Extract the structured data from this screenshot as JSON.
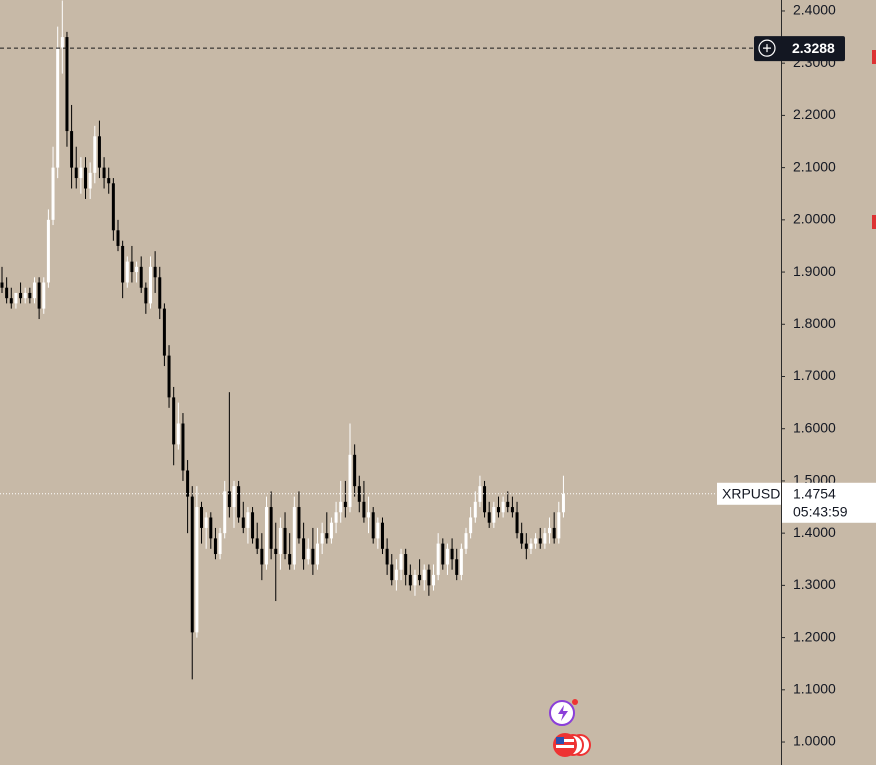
{
  "chart_data": {
    "type": "candlestick",
    "symbol": "XRPUSD",
    "countdown": "05:43:59",
    "up_color": "#ffffff",
    "down_color": "#000000",
    "ylim": [
      0.956,
      2.421
    ],
    "yticks": [
      {
        "value": 1.0,
        "label": "1.0000"
      },
      {
        "value": 1.1,
        "label": "1.1000"
      },
      {
        "value": 1.2,
        "label": "1.2000"
      },
      {
        "value": 1.3,
        "label": "1.3000"
      },
      {
        "value": 1.4,
        "label": "1.4000"
      },
      {
        "value": 1.5,
        "label": "1.5000"
      },
      {
        "value": 1.6,
        "label": "1.6000"
      },
      {
        "value": 1.7,
        "label": "1.7000"
      },
      {
        "value": 1.8,
        "label": "1.8000"
      },
      {
        "value": 1.9,
        "label": "1.9000"
      },
      {
        "value": 2.0,
        "label": "2.0000"
      },
      {
        "value": 2.1,
        "label": "2.1000"
      },
      {
        "value": 2.2,
        "label": "2.2000"
      },
      {
        "value": 2.3,
        "label": "2.3000"
      },
      {
        "value": 2.4,
        "label": "2.4000"
      }
    ],
    "crosshair": 2.3288,
    "candles": [
      [
        1.88,
        1.91,
        1.86,
        1.87
      ],
      [
        1.87,
        1.89,
        1.84,
        1.85
      ],
      [
        1.85,
        1.87,
        1.83,
        1.84
      ],
      [
        1.84,
        1.86,
        1.83,
        1.86
      ],
      [
        1.86,
        1.88,
        1.84,
        1.85
      ],
      [
        1.85,
        1.87,
        1.84,
        1.86
      ],
      [
        1.86,
        1.87,
        1.84,
        1.85
      ],
      [
        1.85,
        1.89,
        1.84,
        1.88
      ],
      [
        1.88,
        1.89,
        1.81,
        1.83
      ],
      [
        1.83,
        1.89,
        1.82,
        1.88
      ],
      [
        1.88,
        2.02,
        1.87,
        2.0
      ],
      [
        2.0,
        2.14,
        1.99,
        2.1
      ],
      [
        2.1,
        2.37,
        2.08,
        2.33
      ],
      [
        2.33,
        2.42,
        2.28,
        2.35
      ],
      [
        2.35,
        2.36,
        2.14,
        2.17
      ],
      [
        2.17,
        2.22,
        2.06,
        2.1
      ],
      [
        2.1,
        2.14,
        2.06,
        2.08
      ],
      [
        2.08,
        2.12,
        2.05,
        2.1
      ],
      [
        2.1,
        2.12,
        2.04,
        2.06
      ],
      [
        2.06,
        2.11,
        2.04,
        2.09
      ],
      [
        2.09,
        2.18,
        2.07,
        2.16
      ],
      [
        2.16,
        2.19,
        2.08,
        2.1
      ],
      [
        2.1,
        2.12,
        2.06,
        2.08
      ],
      [
        2.08,
        2.1,
        2.05,
        2.07
      ],
      [
        2.07,
        2.08,
        1.96,
        1.98
      ],
      [
        1.98,
        2.0,
        1.94,
        1.95
      ],
      [
        1.95,
        1.96,
        1.85,
        1.88
      ],
      [
        1.88,
        1.93,
        1.87,
        1.92
      ],
      [
        1.92,
        1.95,
        1.88,
        1.9
      ],
      [
        1.9,
        1.92,
        1.88,
        1.91
      ],
      [
        1.91,
        1.93,
        1.86,
        1.87
      ],
      [
        1.87,
        1.88,
        1.82,
        1.84
      ],
      [
        1.84,
        1.93,
        1.83,
        1.91
      ],
      [
        1.91,
        1.94,
        1.86,
        1.89
      ],
      [
        1.89,
        1.91,
        1.81,
        1.83
      ],
      [
        1.83,
        1.84,
        1.72,
        1.74
      ],
      [
        1.74,
        1.76,
        1.64,
        1.66
      ],
      [
        1.66,
        1.68,
        1.53,
        1.57
      ],
      [
        1.57,
        1.65,
        1.56,
        1.61
      ],
      [
        1.61,
        1.63,
        1.5,
        1.52
      ],
      [
        1.52,
        1.54,
        1.4,
        1.47
      ],
      [
        1.47,
        1.49,
        1.12,
        1.21
      ],
      [
        1.21,
        1.49,
        1.2,
        1.45
      ],
      [
        1.45,
        1.46,
        1.38,
        1.41
      ],
      [
        1.41,
        1.44,
        1.37,
        1.43
      ],
      [
        1.43,
        1.44,
        1.37,
        1.39
      ],
      [
        1.39,
        1.41,
        1.35,
        1.36
      ],
      [
        1.36,
        1.41,
        1.35,
        1.4
      ],
      [
        1.4,
        1.5,
        1.39,
        1.48
      ],
      [
        1.48,
        1.67,
        1.43,
        1.45
      ],
      [
        1.45,
        1.5,
        1.41,
        1.49
      ],
      [
        1.49,
        1.5,
        1.42,
        1.43
      ],
      [
        1.43,
        1.46,
        1.4,
        1.41
      ],
      [
        1.41,
        1.45,
        1.38,
        1.44
      ],
      [
        1.44,
        1.45,
        1.38,
        1.39
      ],
      [
        1.39,
        1.42,
        1.36,
        1.37
      ],
      [
        1.37,
        1.4,
        1.31,
        1.34
      ],
      [
        1.34,
        1.47,
        1.33,
        1.45
      ],
      [
        1.45,
        1.48,
        1.35,
        1.37
      ],
      [
        1.37,
        1.42,
        1.27,
        1.36
      ],
      [
        1.36,
        1.43,
        1.33,
        1.41
      ],
      [
        1.41,
        1.44,
        1.35,
        1.36
      ],
      [
        1.36,
        1.4,
        1.33,
        1.34
      ],
      [
        1.34,
        1.47,
        1.33,
        1.45
      ],
      [
        1.45,
        1.48,
        1.38,
        1.39
      ],
      [
        1.39,
        1.42,
        1.33,
        1.35
      ],
      [
        1.35,
        1.39,
        1.34,
        1.37
      ],
      [
        1.37,
        1.41,
        1.32,
        1.34
      ],
      [
        1.34,
        1.41,
        1.33,
        1.38
      ],
      [
        1.38,
        1.42,
        1.36,
        1.4
      ],
      [
        1.4,
        1.44,
        1.38,
        1.39
      ],
      [
        1.39,
        1.43,
        1.38,
        1.42
      ],
      [
        1.42,
        1.46,
        1.4,
        1.44
      ],
      [
        1.44,
        1.5,
        1.42,
        1.46
      ],
      [
        1.46,
        1.5,
        1.43,
        1.45
      ],
      [
        1.45,
        1.61,
        1.44,
        1.55
      ],
      [
        1.55,
        1.57,
        1.47,
        1.49
      ],
      [
        1.49,
        1.51,
        1.44,
        1.46
      ],
      [
        1.46,
        1.5,
        1.42,
        1.43
      ],
      [
        1.43,
        1.47,
        1.4,
        1.44
      ],
      [
        1.44,
        1.45,
        1.38,
        1.39
      ],
      [
        1.39,
        1.43,
        1.37,
        1.42
      ],
      [
        1.42,
        1.43,
        1.36,
        1.37
      ],
      [
        1.37,
        1.39,
        1.32,
        1.34
      ],
      [
        1.34,
        1.36,
        1.3,
        1.31
      ],
      [
        1.31,
        1.35,
        1.29,
        1.33
      ],
      [
        1.33,
        1.37,
        1.31,
        1.36
      ],
      [
        1.36,
        1.37,
        1.3,
        1.32
      ],
      [
        1.32,
        1.34,
        1.29,
        1.3
      ],
      [
        1.3,
        1.33,
        1.28,
        1.32
      ],
      [
        1.32,
        1.35,
        1.3,
        1.31
      ],
      [
        1.31,
        1.34,
        1.29,
        1.33
      ],
      [
        1.33,
        1.34,
        1.28,
        1.3
      ],
      [
        1.3,
        1.34,
        1.29,
        1.32
      ],
      [
        1.32,
        1.4,
        1.31,
        1.38
      ],
      [
        1.38,
        1.39,
        1.33,
        1.34
      ],
      [
        1.34,
        1.38,
        1.32,
        1.37
      ],
      [
        1.37,
        1.39,
        1.33,
        1.35
      ],
      [
        1.35,
        1.37,
        1.31,
        1.32
      ],
      [
        1.32,
        1.38,
        1.31,
        1.37
      ],
      [
        1.37,
        1.41,
        1.36,
        1.4
      ],
      [
        1.4,
        1.45,
        1.39,
        1.43
      ],
      [
        1.43,
        1.48,
        1.42,
        1.46
      ],
      [
        1.46,
        1.51,
        1.45,
        1.49
      ],
      [
        1.49,
        1.5,
        1.43,
        1.44
      ],
      [
        1.44,
        1.46,
        1.41,
        1.42
      ],
      [
        1.42,
        1.46,
        1.41,
        1.45
      ],
      [
        1.45,
        1.47,
        1.43,
        1.44
      ],
      [
        1.44,
        1.47,
        1.43,
        1.46
      ],
      [
        1.46,
        1.48,
        1.44,
        1.45
      ],
      [
        1.45,
        1.47,
        1.43,
        1.44
      ],
      [
        1.44,
        1.46,
        1.39,
        1.4
      ],
      [
        1.4,
        1.42,
        1.37,
        1.38
      ],
      [
        1.38,
        1.4,
        1.35,
        1.37
      ],
      [
        1.37,
        1.39,
        1.36,
        1.38
      ],
      [
        1.38,
        1.4,
        1.37,
        1.39
      ],
      [
        1.39,
        1.41,
        1.37,
        1.38
      ],
      [
        1.38,
        1.41,
        1.37,
        1.4
      ],
      [
        1.4,
        1.43,
        1.38,
        1.41
      ],
      [
        1.41,
        1.44,
        1.38,
        1.39
      ],
      [
        1.39,
        1.46,
        1.38,
        1.44
      ],
      [
        1.44,
        1.51,
        1.43,
        1.4754
      ]
    ]
  }
}
